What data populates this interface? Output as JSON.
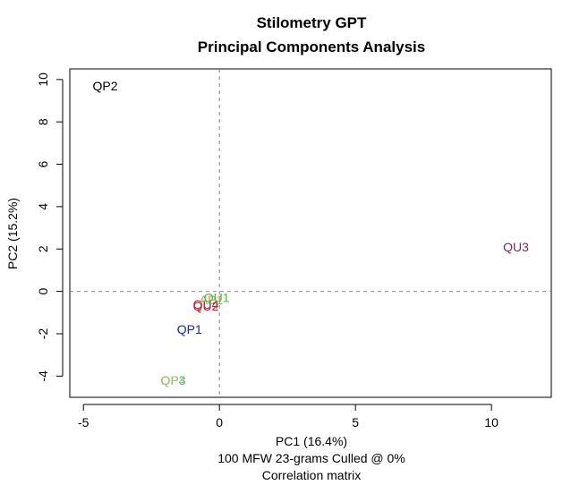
{
  "chart_data": {
    "type": "scatter",
    "title": "Stilometry GPT",
    "subtitle": "Principal Components Analysis",
    "xlabel": "PC1 (16.4%)",
    "xlabel_lines": [
      "100 MFW 23-grams Culled @ 0%",
      "Correlation matrix"
    ],
    "ylabel": "PC2 (15.2%)",
    "xlim": [
      -5.5,
      12.2
    ],
    "ylim": [
      -5,
      10.5
    ],
    "x_ticks": [
      -5,
      0,
      5,
      10
    ],
    "y_ticks": [
      -4,
      -2,
      0,
      2,
      4,
      6,
      8,
      10
    ],
    "reference_lines": {
      "x": 0,
      "y": 0,
      "style": "dashed",
      "color": "#888888"
    },
    "grid": false,
    "points": [
      {
        "label": "QP2",
        "x": -4.2,
        "y": 9.7,
        "color": "#000000"
      },
      {
        "label": "QU3",
        "x": 10.9,
        "y": 2.1,
        "color": "#7a2a5a"
      },
      {
        "label": "QP1",
        "x": -1.1,
        "y": -1.8,
        "color": "#2020c0"
      },
      {
        "label": "QU2",
        "x": -0.5,
        "y": -0.7,
        "color": "#c02020"
      },
      {
        "label": "QU4",
        "x": -0.5,
        "y": -0.6,
        "color": "#b02b5a"
      },
      {
        "label": "AP1",
        "x": -0.3,
        "y": -0.4,
        "color": "#c0a040"
      },
      {
        "label": "QU1",
        "x": -0.1,
        "y": -0.3,
        "color": "#40c040"
      },
      {
        "label": "QP3",
        "x": -1.7,
        "y": -4.2,
        "color": "#40c0c0"
      },
      {
        "label": "QP4",
        "x": -1.7,
        "y": -4.2,
        "color": "#a0c060"
      }
    ]
  }
}
